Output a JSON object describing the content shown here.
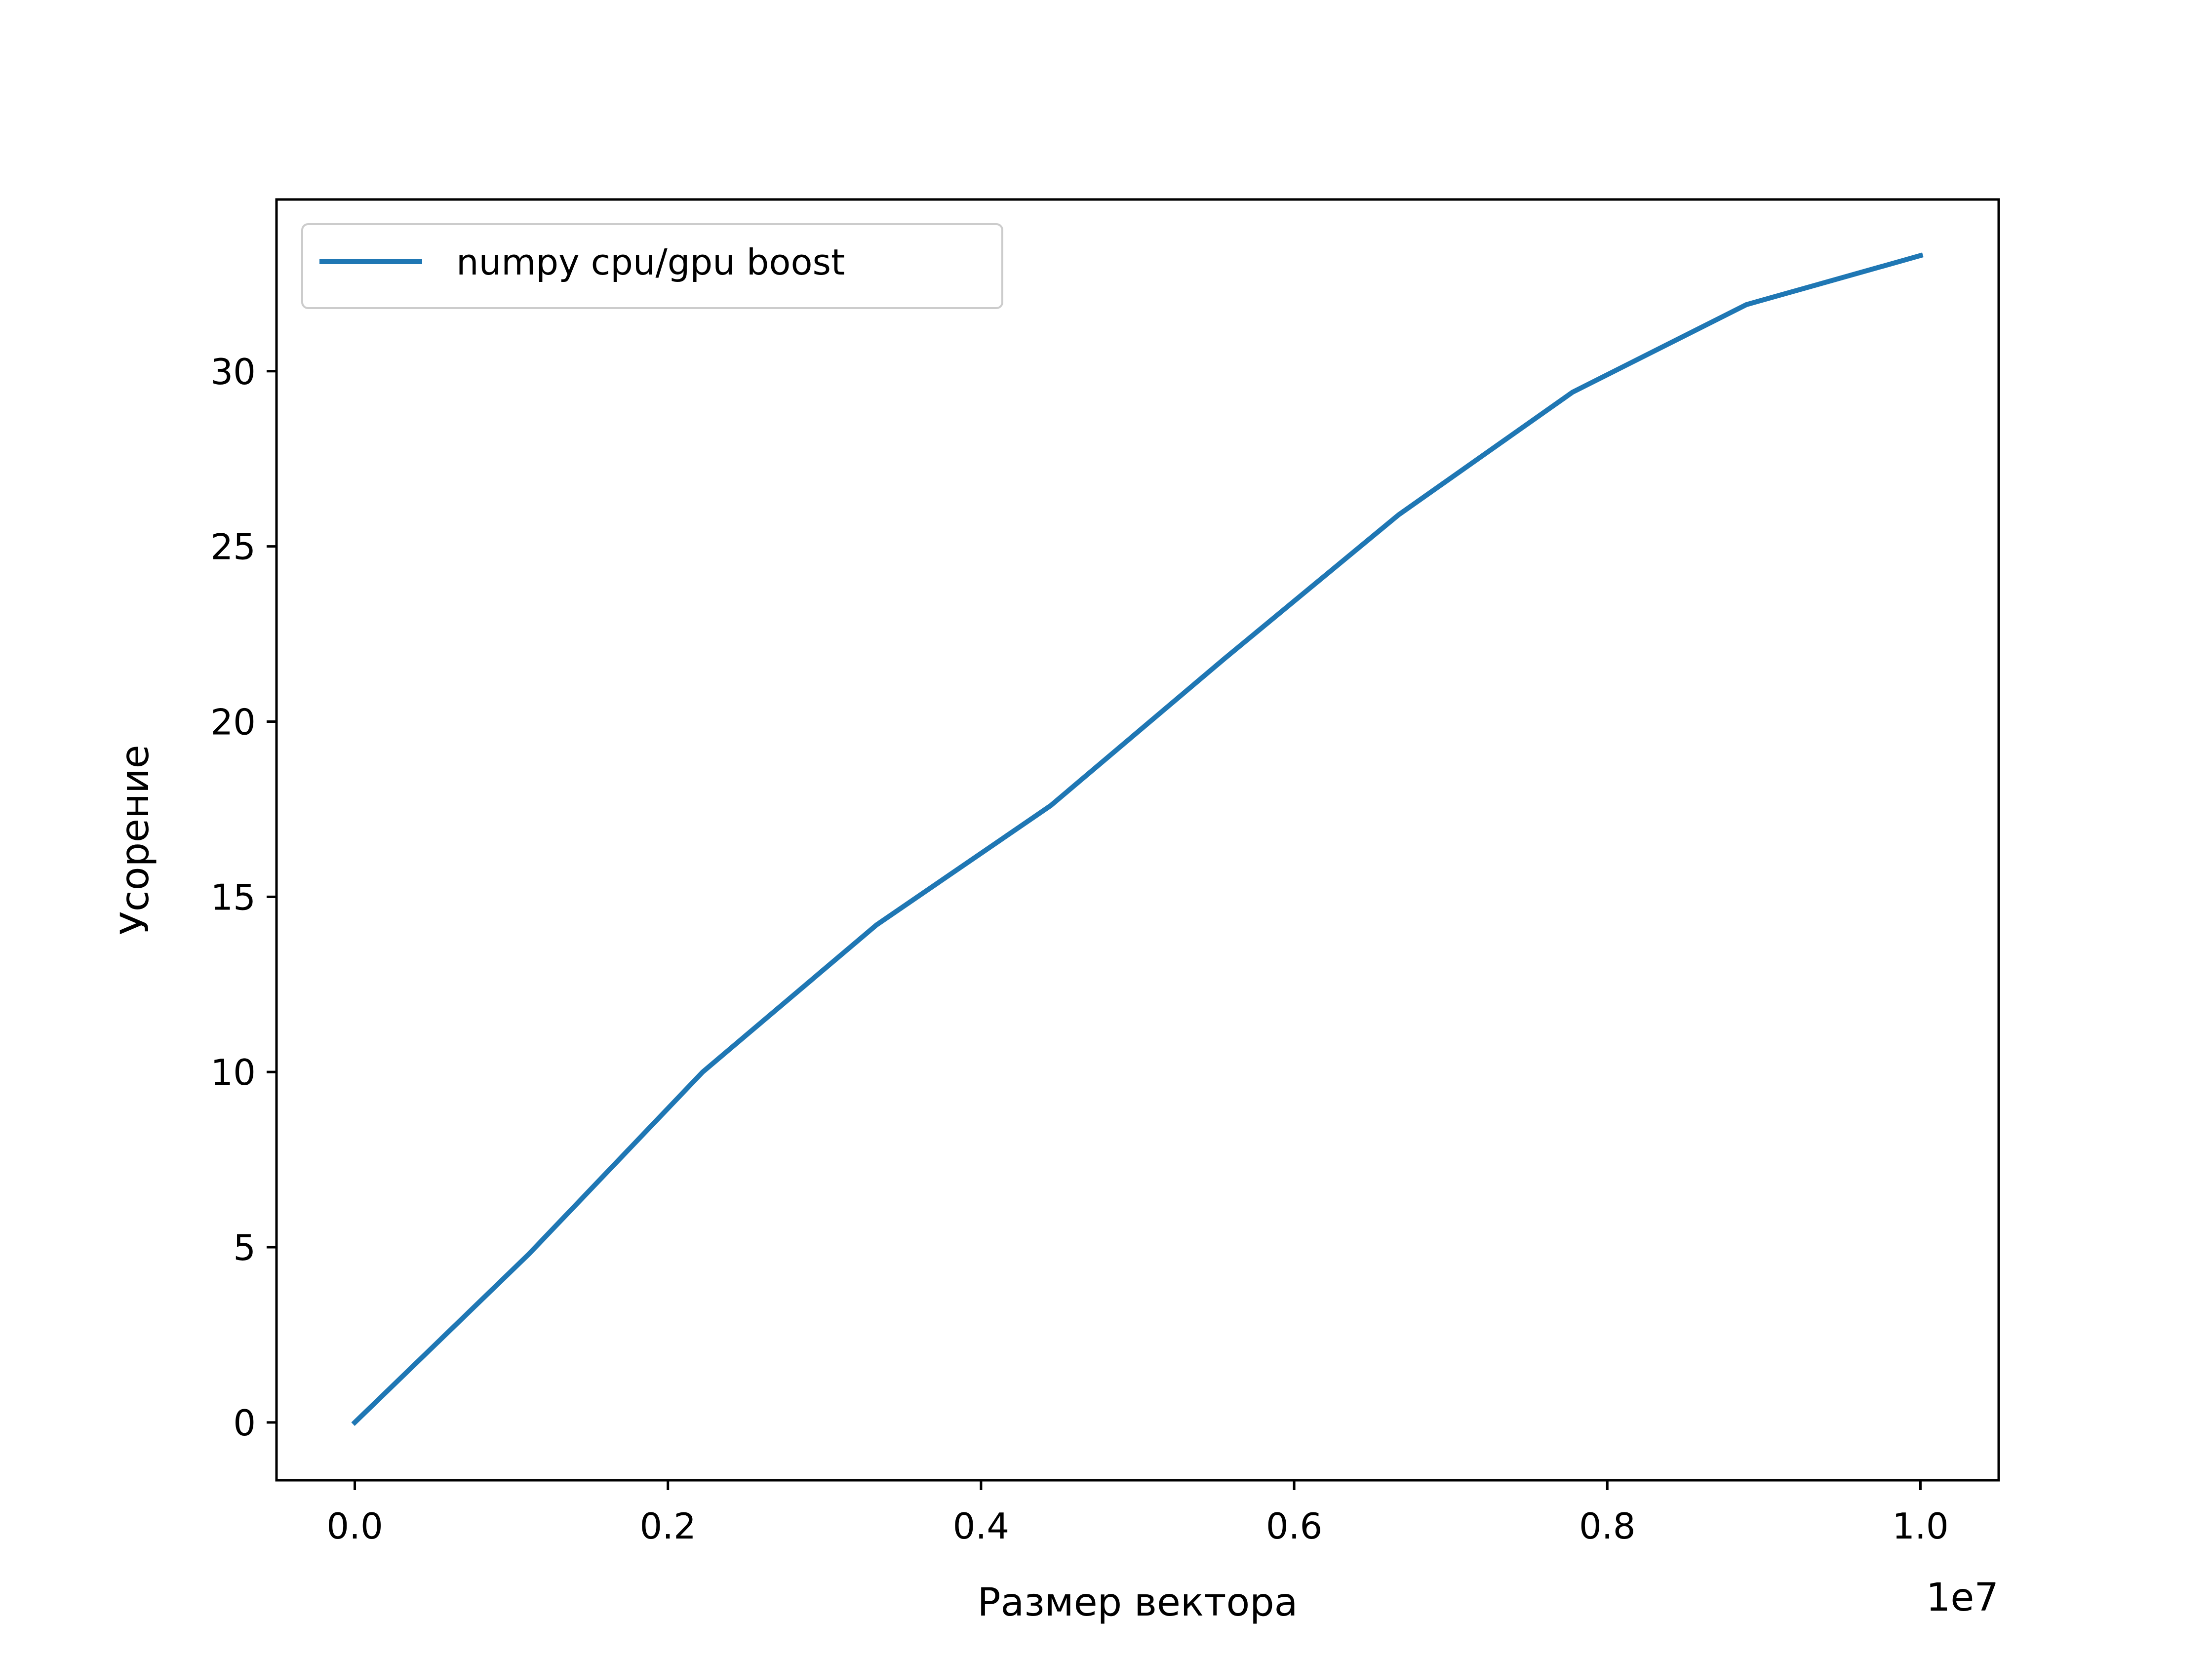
{
  "chart_data": {
    "type": "line",
    "title": "",
    "xlabel": "Размер вектора",
    "ylabel": "Усорение",
    "x_offset_label": "1e7",
    "xlim": [
      -0.05,
      1.05
    ],
    "ylim": [
      -1.65,
      34.9
    ],
    "xticks": [
      0.0,
      0.2,
      0.4,
      0.6,
      0.8,
      1.0
    ],
    "xtick_labels": [
      "0.0",
      "0.2",
      "0.4",
      "0.6",
      "0.8",
      "1.0"
    ],
    "yticks": [
      0,
      5,
      10,
      15,
      20,
      25,
      30
    ],
    "ytick_labels": [
      "0",
      "5",
      "10",
      "15",
      "20",
      "25",
      "30"
    ],
    "grid": false,
    "legend_position": "upper-left",
    "series": [
      {
        "name": "numpy cpu/gpu boost",
        "color": "#1f77b4",
        "x": [
          0.0,
          0.1111,
          0.2222,
          0.3333,
          0.4444,
          0.5556,
          0.6667,
          0.7778,
          0.8889,
          1.0
        ],
        "y": [
          0.0,
          4.8,
          10.0,
          14.2,
          17.6,
          21.8,
          25.9,
          29.4,
          31.9,
          33.3
        ]
      }
    ]
  }
}
